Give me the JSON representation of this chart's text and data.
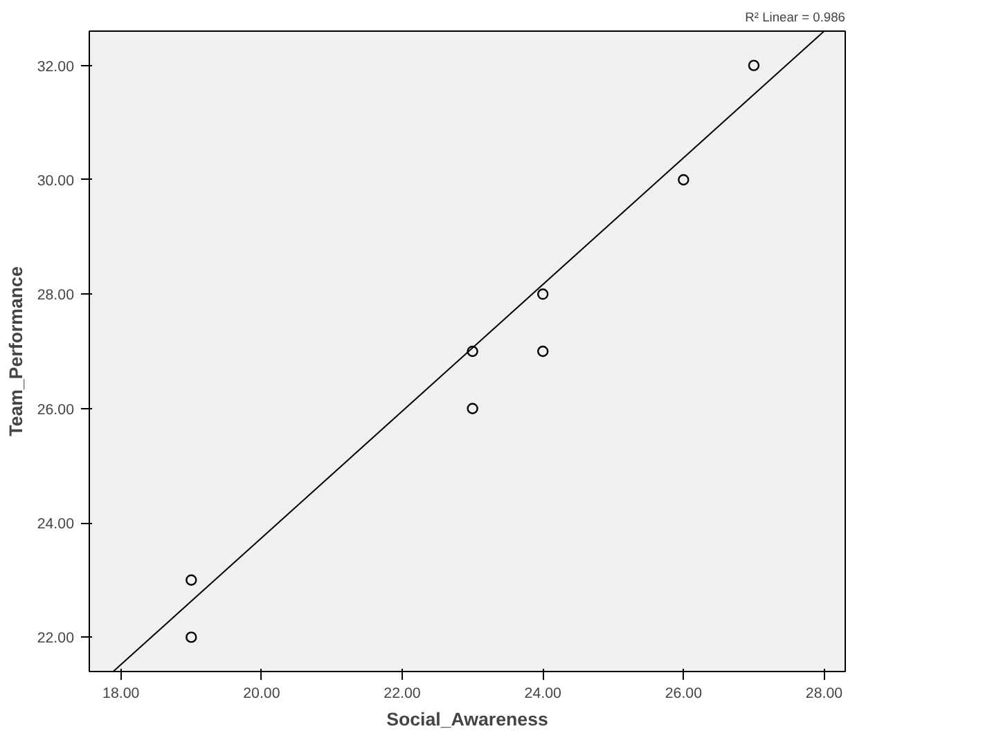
{
  "chart_data": {
    "type": "scatter",
    "xlabel": "Social_Awareness",
    "ylabel": "Team_Performance",
    "xlim": [
      17.55,
      28.3
    ],
    "ylim": [
      21.4,
      32.6
    ],
    "xticks": [
      {
        "value": 18,
        "label": "18.00"
      },
      {
        "value": 20,
        "label": "20.00"
      },
      {
        "value": 22,
        "label": "22.00"
      },
      {
        "value": 24,
        "label": "24.00"
      },
      {
        "value": 26,
        "label": "26.00"
      },
      {
        "value": 28,
        "label": "28.00"
      }
    ],
    "yticks": [
      {
        "value": 22,
        "label": "22.00"
      },
      {
        "value": 24,
        "label": "24.00"
      },
      {
        "value": 26,
        "label": "26.00"
      },
      {
        "value": 28,
        "label": "28.00"
      },
      {
        "value": 30,
        "label": "30.00"
      },
      {
        "value": 32,
        "label": "32.00"
      }
    ],
    "grid": false,
    "series": [
      {
        "marker": "circle",
        "color": "#000000",
        "x": [
          19,
          19,
          23,
          23,
          24,
          24,
          26,
          27
        ],
        "values": [
          23,
          22,
          27,
          26,
          28,
          27,
          30,
          32
        ]
      },
      {
        "type": "line",
        "marker": "none",
        "color": "#000000",
        "x": [
          17.89,
          28.0
        ],
        "values": [
          21.4,
          32.6
        ]
      }
    ],
    "annotations": [
      "R² Linear = 0.986"
    ]
  }
}
